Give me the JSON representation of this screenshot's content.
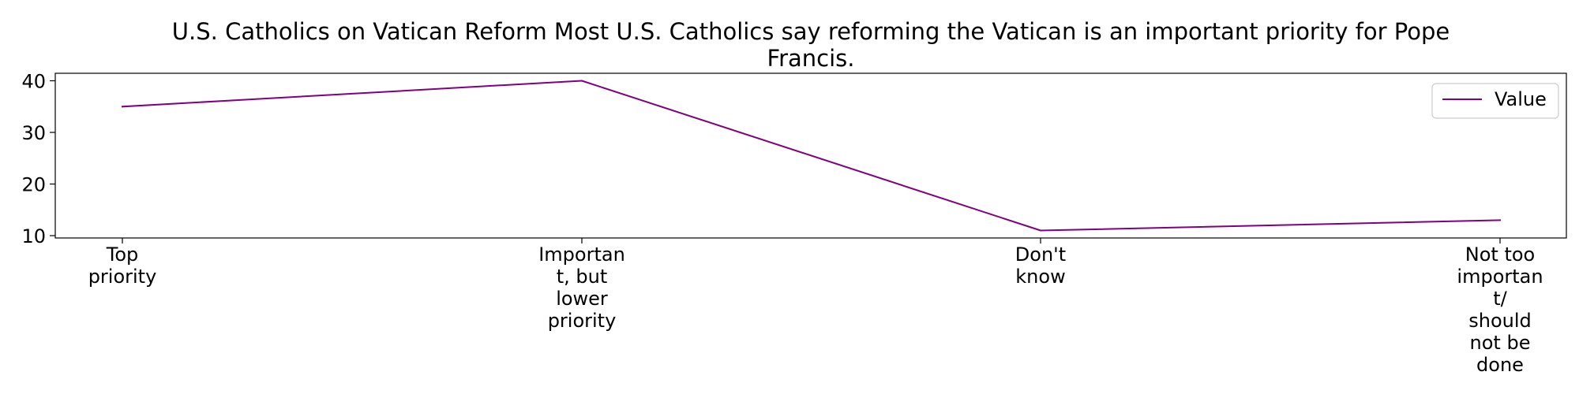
{
  "chart_data": {
    "type": "line",
    "title_lines": [
      "U.S. Catholics on Vatican Reform Most U.S. Catholics say reforming the Vatican is an important priority for Pope",
      "Francis."
    ],
    "categories": [
      "Top priority",
      "Important, but lower priority",
      "Don't know",
      "Not too important/ should not be done"
    ],
    "category_label_lines": [
      [
        "Top",
        "priority"
      ],
      [
        "Importan",
        "t, but",
        "lower",
        "priority"
      ],
      [
        "Don't",
        "know"
      ],
      [
        "Not too",
        "importan",
        "t/",
        "should",
        "not be",
        "done"
      ]
    ],
    "series": [
      {
        "name": "Value",
        "values": [
          35,
          40,
          11,
          13
        ],
        "color": "#800080"
      }
    ],
    "y_ticks": [
      10,
      20,
      30,
      40
    ],
    "ylim": [
      9.55,
      41.45
    ],
    "xlabel": "",
    "ylabel": "",
    "grid": false,
    "legend": {
      "placement": "top-right",
      "label": "Value"
    }
  }
}
